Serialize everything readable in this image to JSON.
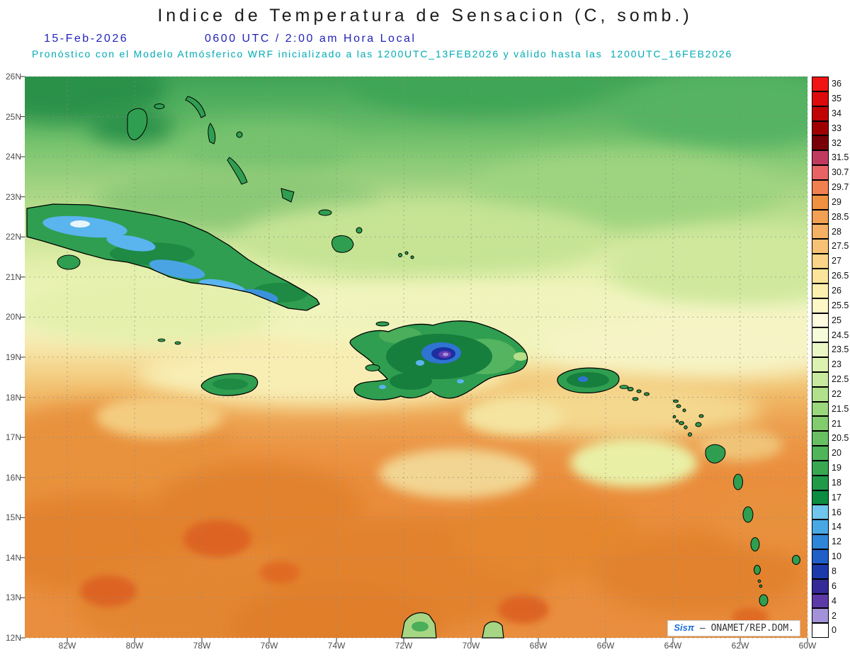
{
  "header": {
    "title": "Indice de Temperatura de Sensacion (C, somb.)",
    "date": "15-Feb-2026",
    "time": "0600 UTC / 2:00 am Hora Local",
    "subtitle": "Pronóstico con el Modelo Atmósferico WRF inicializado a las 1200UTC_13FEB2026 y válido hasta las  1200UTC_16FEB2026"
  },
  "colors": {
    "title_text": "#1c1c1c",
    "header_blue": "#2323bb",
    "header_cyan": "#00aab4",
    "axis_label_gray": "#4d4d4d",
    "watermark_brand_blue": "#1a6fd8"
  },
  "map": {
    "lat_labels": [
      "26N",
      "25N",
      "24N",
      "23N",
      "22N",
      "21N",
      "20N",
      "19N",
      "18N",
      "17N",
      "16N",
      "15N",
      "14N",
      "13N",
      "12N"
    ],
    "lon_labels": [
      "82W",
      "80W",
      "78W",
      "76W",
      "74W",
      "72W",
      "70W",
      "68W",
      "66W",
      "64W",
      "62W",
      "60W"
    ],
    "watermark": {
      "brand": "Sisπ",
      "suffix": " – ONAMET/REP.DOM."
    }
  },
  "colorbar": {
    "entries": [
      {
        "label": "36",
        "color": "#f01414"
      },
      {
        "label": "35",
        "color": "#dc0a0a"
      },
      {
        "label": "34",
        "color": "#c00404"
      },
      {
        "label": "33",
        "color": "#9e0000"
      },
      {
        "label": "32",
        "color": "#780008"
      },
      {
        "label": "31.5",
        "color": "#c03a60"
      },
      {
        "label": "30.7",
        "color": "#e86464"
      },
      {
        "label": "29.7",
        "color": "#f08050"
      },
      {
        "label": "29",
        "color": "#ee9140"
      },
      {
        "label": "28.5",
        "color": "#f1a054"
      },
      {
        "label": "28",
        "color": "#f4b164"
      },
      {
        "label": "27.5",
        "color": "#f7c276"
      },
      {
        "label": "27",
        "color": "#fad488"
      },
      {
        "label": "26.5",
        "color": "#fce49a"
      },
      {
        "label": "26",
        "color": "#fdefae"
      },
      {
        "label": "25.5",
        "color": "#fef7c6"
      },
      {
        "label": "25",
        "color": "#fefbe0"
      },
      {
        "label": "24.5",
        "color": "#f6fbda"
      },
      {
        "label": "23.5",
        "color": "#eaf7c4"
      },
      {
        "label": "23",
        "color": "#dbf2b0"
      },
      {
        "label": "22.5",
        "color": "#c8ea9e"
      },
      {
        "label": "22",
        "color": "#b2e18c"
      },
      {
        "label": "21.5",
        "color": "#9bd77c"
      },
      {
        "label": "21",
        "color": "#82cc6e"
      },
      {
        "label": "20.5",
        "color": "#69c062"
      },
      {
        "label": "20",
        "color": "#50b458"
      },
      {
        "label": "19",
        "color": "#38a750"
      },
      {
        "label": "18",
        "color": "#219a48"
      },
      {
        "label": "17",
        "color": "#0c8c40"
      },
      {
        "label": "16",
        "color": "#70c6ec"
      },
      {
        "label": "14",
        "color": "#48a8e4"
      },
      {
        "label": "12",
        "color": "#2f86d8"
      },
      {
        "label": "10",
        "color": "#1f5fc8"
      },
      {
        "label": "8",
        "color": "#1c3aaa"
      },
      {
        "label": "6",
        "color": "#352a96"
      },
      {
        "label": "4",
        "color": "#5c3aa8"
      },
      {
        "label": "2",
        "color": "#a492d8"
      },
      {
        "label": "0",
        "color": "#ffffff"
      }
    ]
  }
}
